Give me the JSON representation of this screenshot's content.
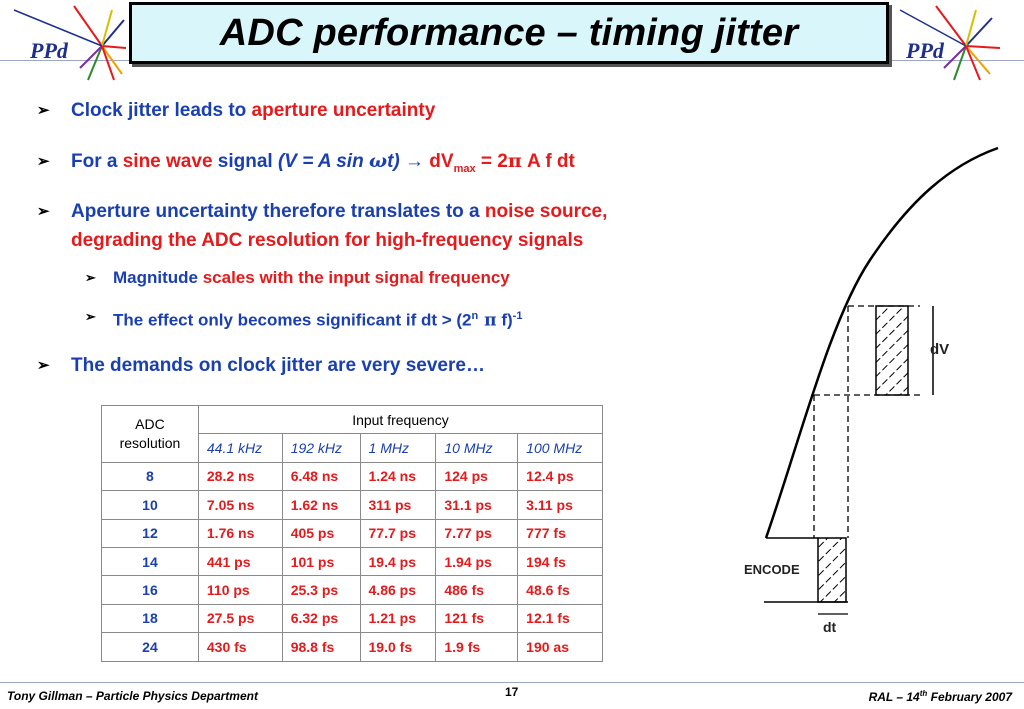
{
  "header": {
    "title": "ADC performance – timing jitter",
    "logo_text": "PPd"
  },
  "bullets": {
    "b1": {
      "text_a": "Clock jitter leads to ",
      "text_b": "aperture uncertainty"
    },
    "b2": {
      "text_a": "For a ",
      "text_b": "sine wave",
      "text_c": " signal ",
      "text_d": "(V = A sin ",
      "omega": "ω",
      "text_e": "t)",
      "arrow": " → ",
      "text_f": "dV",
      "sub": "max",
      "text_g": " = 2",
      "pi": "π",
      "text_h": " A f dt"
    },
    "b3": {
      "text_a": "Aperture uncertainty therefore translates to a ",
      "text_b": "noise source,",
      "text_c": "degrading the ADC resolution for high-frequency signals"
    },
    "b3a": {
      "text_a": "Magnitude ",
      "text_b": "scales with the input signal frequency"
    },
    "b3b": {
      "text_a": "The effect only becomes significant if dt > (2",
      "sup_n": "n",
      "pi": " π",
      "text_b": " f)",
      "sup_m1": "-1"
    },
    "b4": {
      "text_a": "The demands on clock jitter are very severe…"
    }
  },
  "table": {
    "corner": "ADC resolution",
    "group_header": "Input frequency",
    "frequencies": [
      "44.1 kHz",
      "192 kHz",
      "1 MHz",
      "10 MHz",
      "100 MHz"
    ],
    "rows": [
      {
        "res": "8",
        "vals": [
          "28.2 ns",
          "6.48 ns",
          "1.24 ns",
          "124 ps",
          "12.4 ps"
        ]
      },
      {
        "res": "10",
        "vals": [
          "7.05 ns",
          "1.62 ns",
          "311 ps",
          "31.1 ps",
          "3.11 ps"
        ]
      },
      {
        "res": "12",
        "vals": [
          "1.76 ns",
          "405 ps",
          "77.7 ps",
          "7.77 ps",
          "777 fs"
        ]
      },
      {
        "res": "14",
        "vals": [
          "441 ps",
          "101 ps",
          "19.4 ps",
          "1.94 ps",
          "194 fs"
        ]
      },
      {
        "res": "16",
        "vals": [
          "110 ps",
          "25.3 ps",
          "4.86 ps",
          "486 fs",
          "48.6 fs"
        ]
      },
      {
        "res": "18",
        "vals": [
          "27.5 ps",
          "6.32 ps",
          "1.21 ps",
          "121 fs",
          "12.1 fs"
        ]
      },
      {
        "res": "24",
        "vals": [
          "430 fs",
          "98.8 fs",
          "19.0 fs",
          "1.9 fs",
          "190 as"
        ]
      }
    ]
  },
  "diagram": {
    "dv_label": "dV",
    "encode_label": "ENCODE",
    "dt_label": "dt"
  },
  "footer": {
    "left": "Tony Gillman – Particle Physics Department",
    "page": "17",
    "right_a": "RAL – 14",
    "right_sup": "th",
    "right_b": " February 2007"
  },
  "colors": {
    "blue_text": "#1a3fb0",
    "red_text": "#e41a1c",
    "title_bg": "#d9f7fb"
  }
}
